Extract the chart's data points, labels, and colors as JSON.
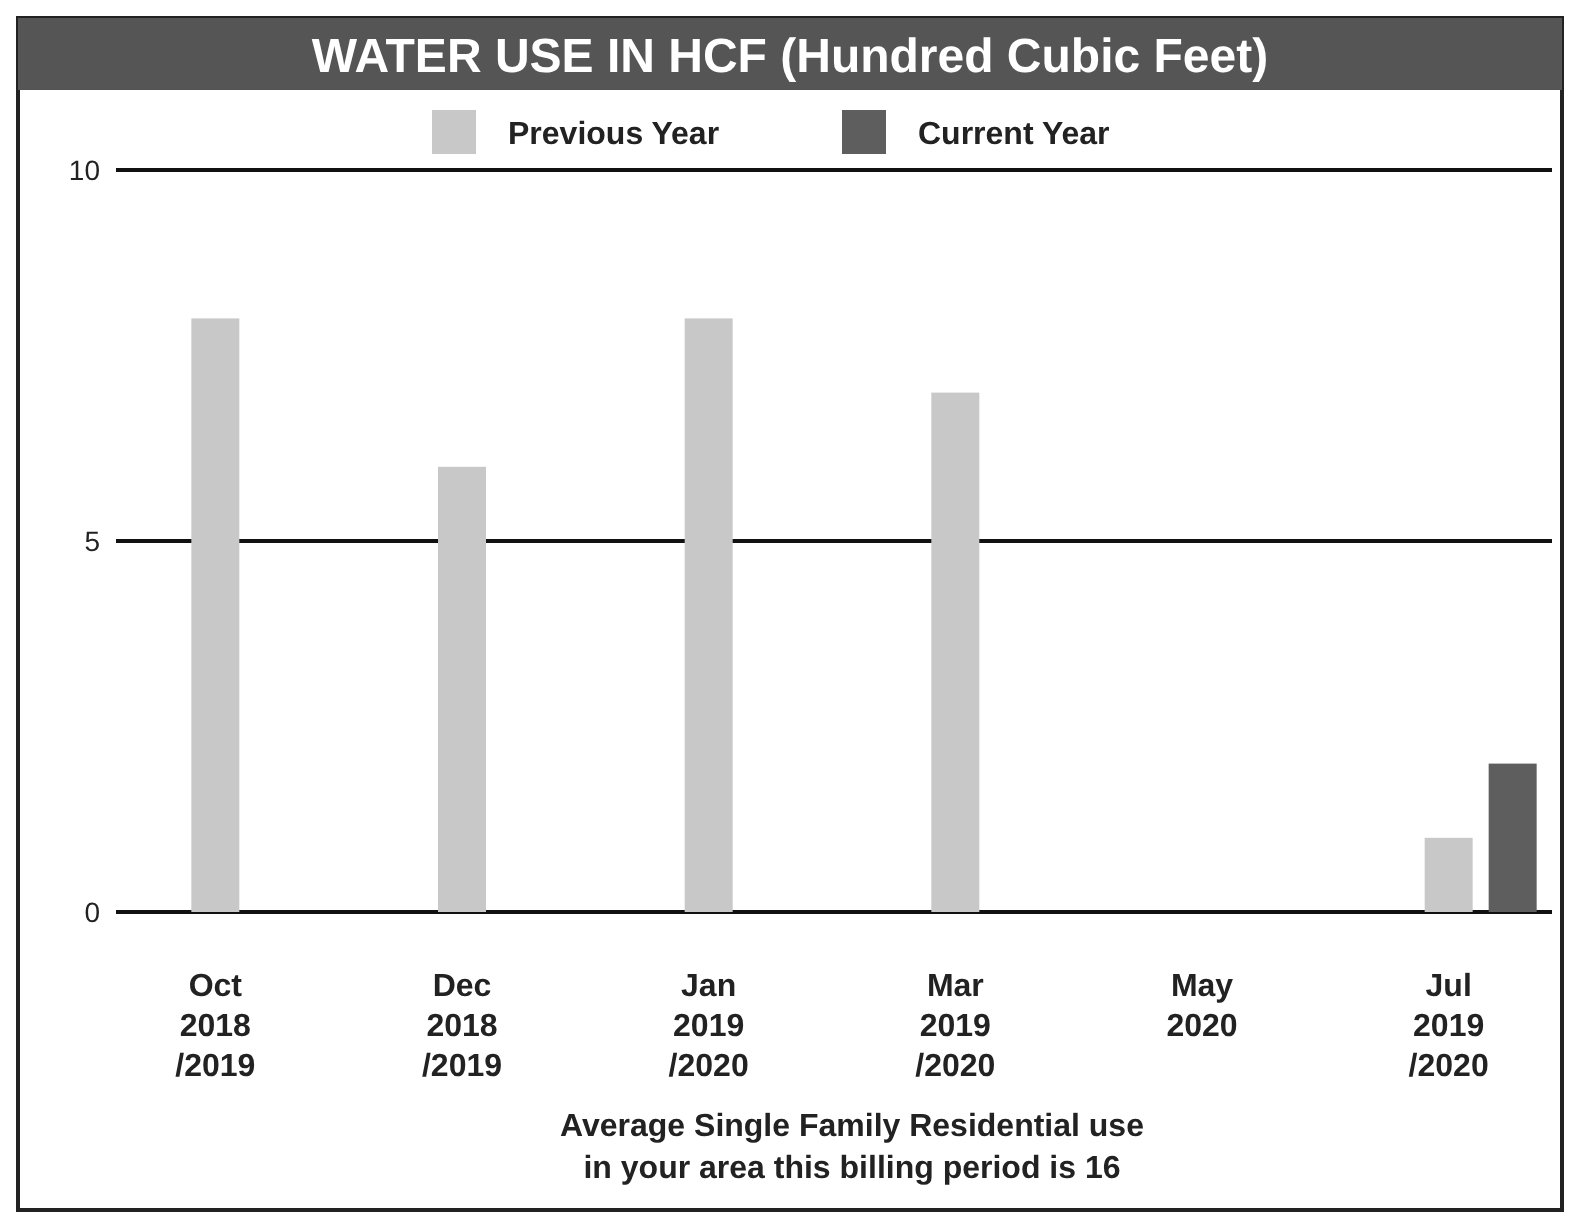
{
  "chart_data": {
    "type": "bar",
    "title": "WATER USE IN HCF (Hundred Cubic Feet)",
    "categories": [
      "Oct\n2018\n/2019",
      "Dec\n2018\n/2019",
      "Jan\n2019\n/2020",
      "Mar\n2019\n/2020",
      "May\n2020",
      "Jul\n2019\n/2020"
    ],
    "series": [
      {
        "name": "Previous Year",
        "color": "#c8c8c8",
        "values": [
          8,
          6,
          8,
          7,
          null,
          1
        ]
      },
      {
        "name": "Current Year",
        "color": "#5e5e5e",
        "values": [
          null,
          null,
          null,
          null,
          null,
          2
        ]
      }
    ],
    "ylim": [
      0,
      10
    ],
    "yticks": [
      0,
      5,
      10
    ],
    "grid": "y",
    "legend": "top",
    "annotations": [
      "Average Single Family Residential use\nin your area this billing period is 16"
    ]
  }
}
